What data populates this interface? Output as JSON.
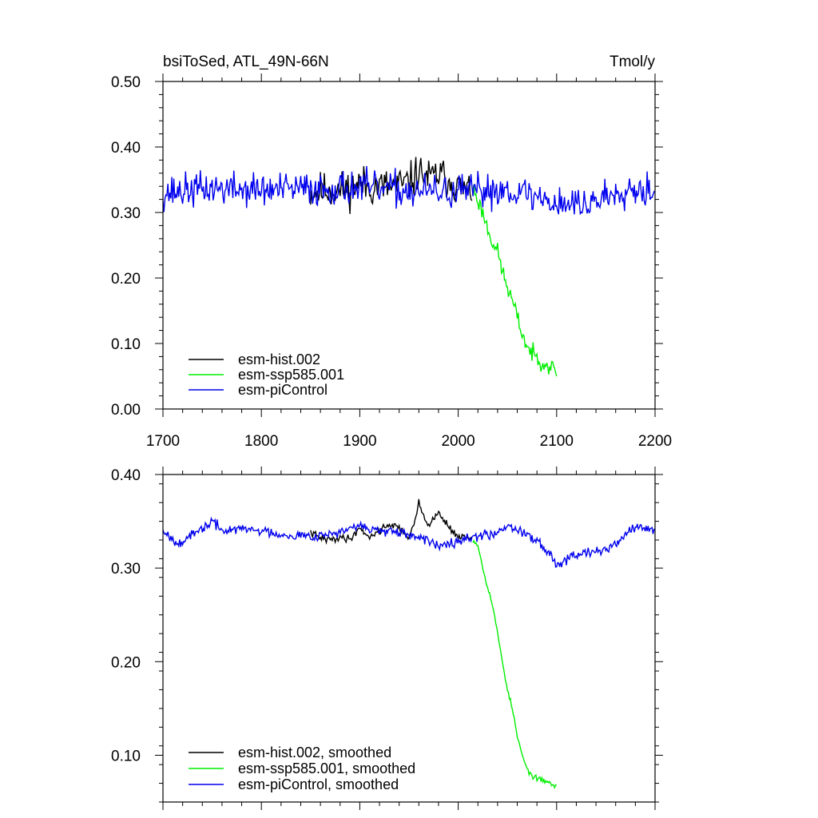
{
  "chart_data": [
    {
      "type": "line",
      "title": "bsiToSed, ATL_49N-66N",
      "units": "Tmol/y",
      "xlim": [
        1700,
        2200
      ],
      "ylim": [
        0.0,
        0.5
      ],
      "xticks": [
        1700,
        1800,
        1900,
        2000,
        2100,
        2200
      ],
      "xtick_labels": [
        "1700",
        "1800",
        "1900",
        "2000",
        "2100",
        "2200"
      ],
      "yticks": [
        0.0,
        0.1,
        0.2,
        0.3,
        0.4,
        0.5
      ],
      "ytick_labels": [
        "0.00",
        "0.10",
        "0.20",
        "0.30",
        "0.40",
        "0.50"
      ],
      "legend_position": "bottom-left",
      "series": [
        {
          "name": "esm-hist.002",
          "color": "#000000",
          "x_start": 1850,
          "x_end": 2014,
          "anchors": [
            [
              1850,
              0.33
            ],
            [
              1860,
              0.333
            ],
            [
              1870,
              0.335
            ],
            [
              1880,
              0.334
            ],
            [
              1890,
              0.337
            ],
            [
              1900,
              0.345
            ],
            [
              1910,
              0.338
            ],
            [
              1920,
              0.34
            ],
            [
              1930,
              0.339
            ],
            [
              1940,
              0.342
            ],
            [
              1950,
              0.345
            ],
            [
              1960,
              0.362
            ],
            [
              1970,
              0.352
            ],
            [
              1980,
              0.358
            ],
            [
              1990,
              0.35
            ],
            [
              2000,
              0.338
            ],
            [
              2014,
              0.333
            ]
          ],
          "noise": 0.022,
          "seed": 11
        },
        {
          "name": "esm-ssp585.001",
          "color": "#00ee00",
          "x_start": 2015,
          "x_end": 2100,
          "anchors": [
            [
              2015,
              0.34
            ],
            [
              2020,
              0.318
            ],
            [
              2025,
              0.3
            ],
            [
              2030,
              0.275
            ],
            [
              2035,
              0.255
            ],
            [
              2040,
              0.24
            ],
            [
              2045,
              0.21
            ],
            [
              2050,
              0.185
            ],
            [
              2055,
              0.165
            ],
            [
              2060,
              0.14
            ],
            [
              2065,
              0.115
            ],
            [
              2070,
              0.095
            ],
            [
              2075,
              0.085
            ],
            [
              2080,
              0.078
            ],
            [
              2090,
              0.068
            ],
            [
              2100,
              0.058
            ]
          ],
          "noise": 0.01,
          "seed": 23
        },
        {
          "name": "esm-piControl",
          "color": "#0000ee",
          "x_start": 1700,
          "x_end": 2200,
          "anchors": [
            [
              1700,
              0.33
            ],
            [
              1750,
              0.337
            ],
            [
              1800,
              0.334
            ],
            [
              1850,
              0.336
            ],
            [
              1900,
              0.338
            ],
            [
              1950,
              0.333
            ],
            [
              2000,
              0.33
            ],
            [
              2050,
              0.336
            ],
            [
              2100,
              0.315
            ],
            [
              2130,
              0.312
            ],
            [
              2150,
              0.325
            ],
            [
              2170,
              0.338
            ],
            [
              2200,
              0.335
            ]
          ],
          "noise": 0.02,
          "seed": 37
        }
      ]
    },
    {
      "type": "line",
      "title": "",
      "units": "",
      "xlim": [
        1700,
        2200
      ],
      "ylim": [
        0.05,
        0.4
      ],
      "xticks": [
        1700,
        1800,
        1900,
        2000,
        2100,
        2200
      ],
      "xtick_labels": [
        "",
        "",
        "",
        "",
        "",
        ""
      ],
      "yticks": [
        0.1,
        0.2,
        0.3,
        0.4
      ],
      "ytick_labels": [
        "0.10",
        "0.20",
        "0.30",
        "0.40"
      ],
      "legend_position": "bottom-left",
      "series": [
        {
          "name": "esm-hist.002, smoothed",
          "color": "#000000",
          "x_start": 1850,
          "x_end": 2014,
          "anchors": [
            [
              1850,
              0.338
            ],
            [
              1860,
              0.332
            ],
            [
              1870,
              0.33
            ],
            [
              1880,
              0.333
            ],
            [
              1890,
              0.331
            ],
            [
              1900,
              0.343
            ],
            [
              1910,
              0.333
            ],
            [
              1920,
              0.34
            ],
            [
              1930,
              0.347
            ],
            [
              1940,
              0.343
            ],
            [
              1950,
              0.333
            ],
            [
              1955,
              0.345
            ],
            [
              1960,
              0.37
            ],
            [
              1966,
              0.352
            ],
            [
              1972,
              0.347
            ],
            [
              1980,
              0.36
            ],
            [
              1985,
              0.352
            ],
            [
              1990,
              0.345
            ],
            [
              2000,
              0.333
            ],
            [
              2014,
              0.332
            ]
          ],
          "noise": 0.003,
          "seed": 41
        },
        {
          "name": "esm-ssp585.001, smoothed",
          "color": "#00ee00",
          "x_start": 2015,
          "x_end": 2100,
          "anchors": [
            [
              2015,
              0.33
            ],
            [
              2020,
              0.325
            ],
            [
              2025,
              0.3
            ],
            [
              2030,
              0.28
            ],
            [
              2035,
              0.26
            ],
            [
              2040,
              0.23
            ],
            [
              2045,
              0.2
            ],
            [
              2050,
              0.17
            ],
            [
              2055,
              0.15
            ],
            [
              2060,
              0.12
            ],
            [
              2065,
              0.1
            ],
            [
              2070,
              0.085
            ],
            [
              2075,
              0.078
            ],
            [
              2080,
              0.075
            ],
            [
              2090,
              0.072
            ],
            [
              2100,
              0.066
            ]
          ],
          "noise": 0.002,
          "seed": 53
        },
        {
          "name": "esm-piControl, smoothed",
          "color": "#0000ee",
          "x_start": 1700,
          "x_end": 2200,
          "anchors": [
            [
              1700,
              0.342
            ],
            [
              1710,
              0.33
            ],
            [
              1720,
              0.328
            ],
            [
              1730,
              0.335
            ],
            [
              1740,
              0.342
            ],
            [
              1750,
              0.35
            ],
            [
              1760,
              0.34
            ],
            [
              1780,
              0.342
            ],
            [
              1800,
              0.34
            ],
            [
              1820,
              0.336
            ],
            [
              1850,
              0.334
            ],
            [
              1880,
              0.338
            ],
            [
              1900,
              0.345
            ],
            [
              1920,
              0.34
            ],
            [
              1950,
              0.335
            ],
            [
              1980,
              0.325
            ],
            [
              2000,
              0.33
            ],
            [
              2020,
              0.334
            ],
            [
              2040,
              0.338
            ],
            [
              2050,
              0.346
            ],
            [
              2060,
              0.342
            ],
            [
              2080,
              0.33
            ],
            [
              2100,
              0.305
            ],
            [
              2120,
              0.315
            ],
            [
              2140,
              0.32
            ],
            [
              2150,
              0.318
            ],
            [
              2170,
              0.335
            ],
            [
              2180,
              0.345
            ],
            [
              2200,
              0.34
            ]
          ],
          "noise": 0.004,
          "seed": 67
        }
      ]
    }
  ]
}
